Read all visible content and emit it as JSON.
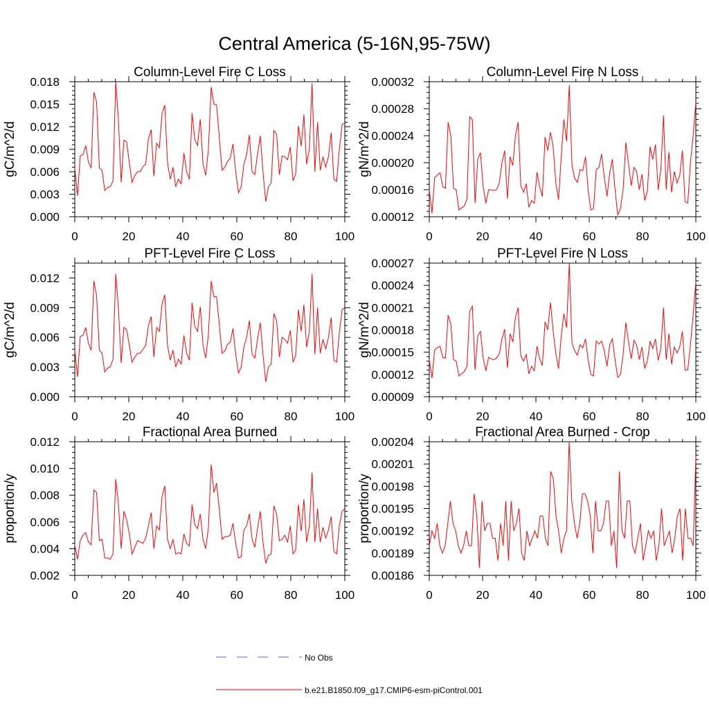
{
  "title": "Central America (5-16N,95-75W)",
  "colors": {
    "series": "#ff0000",
    "obs": "#5a5aff",
    "axis": "#000000"
  },
  "legend": {
    "placement": "bottom-center",
    "entries": [
      {
        "label": "No Obs",
        "style": "dashed",
        "color": "#5a5aff"
      },
      {
        "label": "b.e21.B1850.f09_g17.CMIP6-esm-piControl.001",
        "style": "solid",
        "color": "#ff0000"
      }
    ]
  },
  "chart_data": [
    {
      "type": "line",
      "title": "Column-Level Fire C Loss",
      "ylabel": "gC/m^2/d",
      "xlabel": "",
      "xlim": [
        0,
        100
      ],
      "ylim": [
        0,
        0.018
      ],
      "x_ticks": [
        "0",
        "20",
        "40",
        "60",
        "80",
        "100"
      ],
      "y_ticks": [
        "0.000",
        "0.003",
        "0.006",
        "0.009",
        "0.012",
        "0.015",
        "0.018"
      ],
      "series": [
        {
          "name": "b.e21.B1850.f09_g17.CMIP6-esm-piControl.001",
          "values": [
            0.0065,
            0.0028,
            0.0081,
            0.0083,
            0.0095,
            0.0073,
            0.0065,
            0.0166,
            0.0153,
            0.0065,
            0.0062,
            0.0035,
            0.0039,
            0.004,
            0.0048,
            0.018,
            0.013,
            0.0046,
            0.0102,
            0.01,
            0.0072,
            0.0046,
            0.0055,
            0.006,
            0.006,
            0.0067,
            0.007,
            0.0104,
            0.0116,
            0.0054,
            0.0098,
            0.0092,
            0.0138,
            0.0149,
            0.0072,
            0.005,
            0.0066,
            0.004,
            0.005,
            0.0044,
            0.0085,
            0.006,
            0.005,
            0.0138,
            0.0103,
            0.0095,
            0.013,
            0.007,
            0.0055,
            0.009,
            0.0173,
            0.015,
            0.0149,
            0.0105,
            0.0062,
            0.0066,
            0.0074,
            0.0078,
            0.0097,
            0.006,
            0.0032,
            0.004,
            0.007,
            0.0083,
            0.0109,
            0.006,
            0.0056,
            0.0083,
            0.0108,
            0.006,
            0.002,
            0.004,
            0.0045,
            0.0115,
            0.011,
            0.0056,
            0.0081,
            0.008,
            0.0076,
            0.0093,
            0.0048,
            0.0057,
            0.0121,
            0.0094,
            0.0136,
            0.007,
            0.009,
            0.0178,
            0.006,
            0.0126,
            0.0062,
            0.008,
            0.0066,
            0.008,
            0.0112,
            0.005,
            0.0047,
            0.009,
            0.0123,
            0.0125
          ]
        }
      ]
    },
    {
      "type": "line",
      "title": "Column-Level Fire N Loss",
      "ylabel": "gN/m^2/d",
      "xlabel": "",
      "xlim": [
        0,
        100
      ],
      "ylim": [
        0.00012,
        0.00032
      ],
      "x_ticks": [
        "0",
        "20",
        "40",
        "60",
        "80",
        "100"
      ],
      "y_ticks": [
        "0.00012",
        "0.00016",
        "0.00020",
        "0.00024",
        "0.00028",
        "0.00032"
      ],
      "series": [
        {
          "name": "b.e21.B1850.f09_g17.CMIP6-esm-piControl.001",
          "values": [
            0.00016,
            0.000125,
            0.000178,
            0.000182,
            0.000185,
            0.000165,
            0.000162,
            0.00026,
            0.00024,
            0.000162,
            0.00016,
            0.00013,
            0.000133,
            0.000136,
            0.000146,
            0.000268,
            0.000264,
            0.00014,
            0.000205,
            0.000215,
            0.000165,
            0.00014,
            0.00016,
            0.00016,
            0.000159,
            0.00016,
            0.00017,
            0.0002,
            0.000218,
            0.000147,
            0.000209,
            0.000196,
            0.00024,
            0.00026,
            0.000166,
            0.000156,
            0.000169,
            0.000134,
            0.000144,
            0.00014,
            0.000186,
            0.000164,
            0.00015,
            0.000238,
            0.000218,
            0.000245,
            0.000224,
            0.00017,
            0.000145,
            0.00021,
            0.000264,
            0.000232,
            0.000315,
            0.000196,
            0.000177,
            0.000171,
            0.00019,
            0.000188,
            0.000209,
            0.00016,
            0.00013,
            0.000132,
            0.00019,
            0.000193,
            0.000213,
            0.000178,
            0.00015,
            0.000185,
            0.000205,
            0.00016,
            0.000123,
            0.000132,
            0.000161,
            0.00023,
            0.000198,
            0.000166,
            0.000193,
            0.000187,
            0.00016,
            0.000183,
            0.000144,
            0.000158,
            0.000224,
            0.000205,
            0.000227,
            0.00016,
            0.00019,
            0.00027,
            0.00016,
            0.000216,
            0.000156,
            0.000187,
            0.00017,
            0.000181,
            0.000218,
            0.000142,
            0.00014,
            0.0002,
            0.00024,
            0.00029
          ]
        }
      ]
    },
    {
      "type": "line",
      "title": "PFT-Level Fire C Loss",
      "ylabel": "gC/m^2/d",
      "xlabel": "",
      "xlim": [
        0,
        100
      ],
      "ylim": [
        0,
        0.0135
      ],
      "x_ticks": [
        "0",
        "20",
        "40",
        "60",
        "80",
        "100"
      ],
      "y_ticks": [
        "0.000",
        "0.003",
        "0.006",
        "0.009",
        "0.012"
      ],
      "series": [
        {
          "name": "b.e21.B1850.f09_g17.CMIP6-esm-piControl.001",
          "values": [
            0.0047,
            0.002,
            0.0061,
            0.0062,
            0.007,
            0.0054,
            0.0047,
            0.0117,
            0.0102,
            0.0047,
            0.0044,
            0.0025,
            0.0029,
            0.003,
            0.0038,
            0.0124,
            0.009,
            0.0034,
            0.007,
            0.0068,
            0.0052,
            0.0035,
            0.004,
            0.0044,
            0.0044,
            0.0048,
            0.0052,
            0.0072,
            0.0081,
            0.004,
            0.007,
            0.0066,
            0.0094,
            0.0103,
            0.0052,
            0.0037,
            0.0047,
            0.003,
            0.0038,
            0.0033,
            0.0062,
            0.0044,
            0.0037,
            0.0095,
            0.0071,
            0.0066,
            0.0091,
            0.0052,
            0.0039,
            0.0063,
            0.0117,
            0.0101,
            0.0101,
            0.0072,
            0.0044,
            0.0046,
            0.0053,
            0.0055,
            0.0069,
            0.0043,
            0.0024,
            0.003,
            0.005,
            0.006,
            0.0077,
            0.0043,
            0.0039,
            0.0058,
            0.0075,
            0.0043,
            0.0015,
            0.003,
            0.0033,
            0.0084,
            0.0077,
            0.004,
            0.006,
            0.0058,
            0.0054,
            0.0067,
            0.0035,
            0.0042,
            0.0088,
            0.0066,
            0.0093,
            0.005,
            0.0066,
            0.0124,
            0.0043,
            0.009,
            0.0044,
            0.0058,
            0.0048,
            0.006,
            0.008,
            0.0037,
            0.0035,
            0.0065,
            0.0088,
            0.009
          ]
        }
      ]
    },
    {
      "type": "line",
      "title": "PFT-Level Fire N Loss",
      "ylabel": "gN/m^2/d",
      "xlabel": "",
      "xlim": [
        0,
        100
      ],
      "ylim": [
        9e-05,
        0.00027
      ],
      "x_ticks": [
        "0",
        "20",
        "40",
        "60",
        "80",
        "100"
      ],
      "y_ticks": [
        "0.00009",
        "0.00012",
        "0.00015",
        "0.00018",
        "0.00021",
        "0.00024",
        "0.00027"
      ],
      "series": [
        {
          "name": "b.e21.B1850.f09_g17.CMIP6-esm-piControl.001",
          "values": [
            0.00014,
            0.000115,
            0.000153,
            0.000156,
            0.000158,
            0.000143,
            0.000142,
            0.0002,
            0.000188,
            0.00014,
            0.000138,
            0.000118,
            0.000121,
            0.000124,
            0.000131,
            0.000205,
            0.000212,
            0.000126,
            0.000172,
            0.000178,
            0.000142,
            0.000125,
            0.000143,
            0.000141,
            0.00014,
            0.000142,
            0.000148,
            0.000168,
            0.000181,
            0.000129,
            0.000175,
            0.000164,
            0.000197,
            0.00021,
            0.000145,
            0.000138,
            0.000147,
            0.000121,
            0.000131,
            0.000125,
            0.000158,
            0.000141,
            0.000132,
            0.000191,
            0.00018,
            0.000217,
            0.000178,
            0.000148,
            0.000128,
            0.000172,
            0.000202,
            0.000183,
            0.00027,
            0.000162,
            0.000152,
            0.000146,
            0.00016,
            0.000156,
            0.000168,
            0.00014,
            0.00012,
            0.000118,
            0.000165,
            0.000161,
            0.000165,
            0.000152,
            0.000131,
            0.00016,
            0.000168,
            0.00014,
            0.000116,
            0.00012,
            0.000147,
            0.00019,
            0.000164,
            0.000141,
            0.000166,
            0.00016,
            0.00014,
            0.000157,
            0.000128,
            0.000138,
            0.000165,
            0.000155,
            0.000168,
            0.000139,
            0.000155,
            0.00021,
            0.00014,
            0.000175,
            0.000134,
            0.000157,
            0.000149,
            0.000157,
            0.000178,
            0.000126,
            0.000126,
            0.00016,
            0.0002,
            0.000245
          ]
        }
      ]
    },
    {
      "type": "line",
      "title": "Fractional Area Burned",
      "ylabel": "proportion/y",
      "xlabel": "",
      "xlim": [
        0,
        100
      ],
      "ylim": [
        0.002,
        0.012
      ],
      "x_ticks": [
        "0",
        "20",
        "40",
        "60",
        "80",
        "100"
      ],
      "y_ticks": [
        "0.002",
        "0.004",
        "0.006",
        "0.008",
        "0.010",
        "0.012"
      ],
      "series": [
        {
          "name": "b.e21.B1850.f09_g17.CMIP6-esm-piControl.001",
          "values": [
            0.0043,
            0.0032,
            0.0046,
            0.005,
            0.0052,
            0.0045,
            0.0043,
            0.0084,
            0.0082,
            0.0046,
            0.0047,
            0.0033,
            0.0033,
            0.0032,
            0.0036,
            0.0092,
            0.0074,
            0.004,
            0.0068,
            0.0062,
            0.0051,
            0.0036,
            0.0041,
            0.0046,
            0.0045,
            0.0044,
            0.0048,
            0.0057,
            0.0067,
            0.004,
            0.0057,
            0.0054,
            0.0079,
            0.0087,
            0.0047,
            0.004,
            0.0047,
            0.0036,
            0.0037,
            0.0036,
            0.0051,
            0.0044,
            0.0042,
            0.0073,
            0.0058,
            0.0055,
            0.0066,
            0.0047,
            0.004,
            0.0056,
            0.0103,
            0.0082,
            0.0089,
            0.0069,
            0.0047,
            0.0049,
            0.0049,
            0.005,
            0.0059,
            0.0044,
            0.0033,
            0.0034,
            0.0054,
            0.0057,
            0.0066,
            0.0047,
            0.0041,
            0.0055,
            0.0068,
            0.0045,
            0.0029,
            0.0035,
            0.0036,
            0.0072,
            0.0066,
            0.0046,
            0.0047,
            0.005,
            0.0045,
            0.0057,
            0.0036,
            0.0039,
            0.0073,
            0.0053,
            0.0077,
            0.0045,
            0.0057,
            0.0097,
            0.0045,
            0.007,
            0.0045,
            0.0056,
            0.0048,
            0.0054,
            0.0064,
            0.0038,
            0.0036,
            0.0057,
            0.0068,
            0.007
          ]
        }
      ]
    },
    {
      "type": "line",
      "title": "Fractional Area Burned - Crop",
      "ylabel": "proportion/y",
      "xlabel": "",
      "xlim": [
        0,
        100
      ],
      "ylim": [
        0.00186,
        0.00204
      ],
      "x_ticks": [
        "0",
        "20",
        "40",
        "60",
        "80",
        "100"
      ],
      "y_ticks": [
        "0.00186",
        "0.00189",
        "0.00192",
        "0.00195",
        "0.00198",
        "0.00201",
        "0.00204"
      ],
      "series": [
        {
          "name": "b.e21.B1850.f09_g17.CMIP6-esm-piControl.001",
          "values": [
            0.0019,
            0.00192,
            0.00191,
            0.00193,
            0.0019,
            0.00189,
            0.0019,
            0.00193,
            0.00196,
            0.00193,
            0.00192,
            0.0019,
            0.00189,
            0.0019,
            0.00192,
            0.0019,
            0.0019,
            0.00197,
            0.00194,
            0.00187,
            0.00196,
            0.00192,
            0.00193,
            0.00193,
            0.00191,
            0.00191,
            0.00188,
            0.00193,
            0.0019,
            0.00196,
            0.00188,
            0.00196,
            0.00192,
            0.00193,
            0.00195,
            0.00189,
            0.00188,
            0.00192,
            0.0019,
            0.00191,
            0.00192,
            0.00191,
            0.00194,
            0.00194,
            0.00191,
            0.0019,
            0.002,
            0.00199,
            0.00194,
            0.00192,
            0.00189,
            0.00191,
            0.00192,
            0.00204,
            0.00196,
            0.00193,
            0.00191,
            0.00193,
            0.00197,
            0.00197,
            0.00196,
            0.00194,
            0.00189,
            0.00196,
            0.00192,
            0.00192,
            0.00193,
            0.00196,
            0.00196,
            0.0019,
            0.00192,
            0.00187,
            0.002,
            0.00192,
            0.00191,
            0.00196,
            0.00196,
            0.0019,
            0.00189,
            0.00191,
            0.00193,
            0.00188,
            0.0019,
            0.00192,
            0.00191,
            0.00192,
            0.00188,
            0.0019,
            0.00195,
            0.0019,
            0.00191,
            0.00192,
            0.00189,
            0.00191,
            0.00194,
            0.00195,
            0.00188,
            0.00195,
            0.00191,
            0.00191,
            0.0019,
            0.00202
          ]
        }
      ]
    }
  ]
}
